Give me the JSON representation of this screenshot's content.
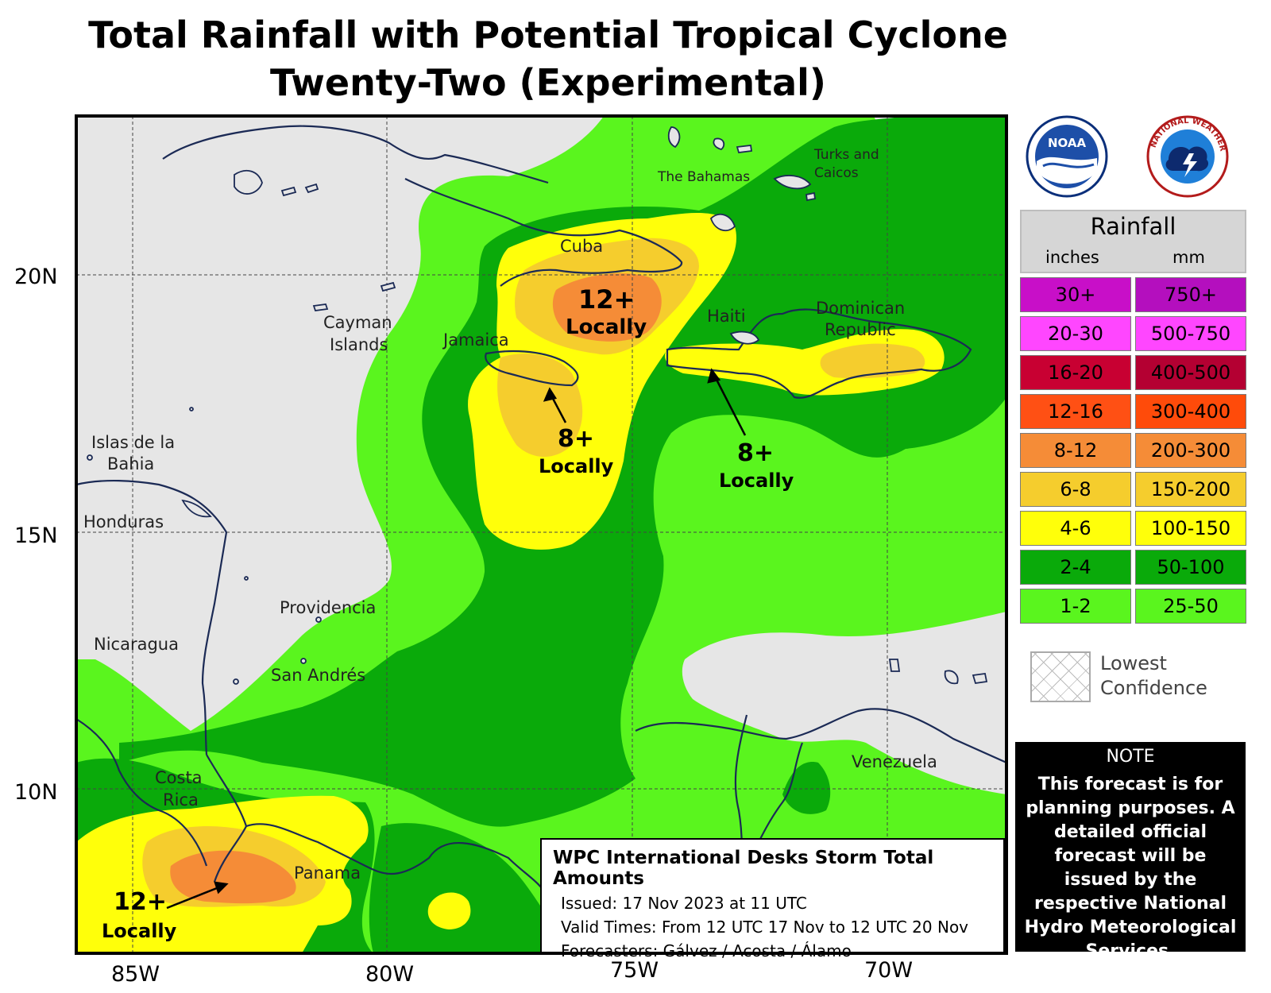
{
  "title": {
    "line1": "Total Rainfall with Potential Tropical Cyclone",
    "line2": "Twenty-Two (Experimental)"
  },
  "axes": {
    "latitudes": [
      "20N",
      "15N",
      "10N"
    ],
    "longitudes": [
      "85W",
      "80W",
      "75W",
      "70W"
    ]
  },
  "places": {
    "the_bahamas": "The Bahamas",
    "turks_line1": "Turks and",
    "turks_line2": "Caicos",
    "cuba": "Cuba",
    "haiti": "Haiti",
    "dominican_line1": "Dominican",
    "dominican_line2": "Republic",
    "cayman_line1": "Cayman",
    "cayman_line2": "Islands",
    "jamaica": "Jamaica",
    "islas_line1": "Islas de la",
    "islas_line2": "Bahia",
    "honduras": "Honduras",
    "providencia": "Providencia",
    "nicaragua": "Nicaragua",
    "san_andres": "San Andrés",
    "costa_line1": "Costa",
    "costa_line2": "Rica",
    "panama": "Panama",
    "venezuela": "Venezuela"
  },
  "callouts": {
    "cuba_amount": "12+",
    "cuba_word": "Locally",
    "jamaica_amount": "8+",
    "jamaica_word": "Locally",
    "haiti_amount": "8+",
    "haiti_word": "Locally",
    "costarica_amount": "12+",
    "costarica_word": "Locally"
  },
  "legend": {
    "title": "Rainfall",
    "inches_header": "inches",
    "mm_header": "mm",
    "rows": [
      {
        "inches": "30+",
        "mm": "750+",
        "color": "#c80fc8",
        "mm_color": "#b40fbe"
      },
      {
        "inches": "20-30",
        "mm": "500-750",
        "color": "#ff46ff",
        "mm_color": "#ff46ff"
      },
      {
        "inches": "16-20",
        "mm": "400-500",
        "color": "#c80032",
        "mm_color": "#b40032"
      },
      {
        "inches": "12-16",
        "mm": "300-400",
        "color": "#ff5014",
        "mm_color": "#ff4b0a"
      },
      {
        "inches": "8-12",
        "mm": "200-300",
        "color": "#f58c37",
        "mm_color": "#f58c37"
      },
      {
        "inches": "6-8",
        "mm": "150-200",
        "color": "#f5cd2d",
        "mm_color": "#f5cd2d"
      },
      {
        "inches": "4-6",
        "mm": "100-150",
        "color": "#ffff0a",
        "mm_color": "#ffff0a"
      },
      {
        "inches": "2-4",
        "mm": "50-100",
        "color": "#0aaa0a",
        "mm_color": "#0aaa0a"
      },
      {
        "inches": "1-2",
        "mm": "25-50",
        "color": "#5af51e",
        "mm_color": "#5af51e"
      }
    ]
  },
  "low_confidence": {
    "line1": "Lowest",
    "line2": "Confidence"
  },
  "note": {
    "title": "NOTE",
    "body": "This forecast is for planning purposes. A detailed official forecast will be issued by the respective National Hydro Meteorological Services."
  },
  "info": {
    "heading": "WPC International Desks Storm Total Amounts",
    "issued": "Issued:  17 Nov 2023 at 11 UTC",
    "valid": "Valid Times:  From 12 UTC 17 Nov to 12 UTC 20 Nov",
    "forecasters": "Forecasters: Gálvez / Acosta / Álamo"
  },
  "logos": {
    "noaa_text": "NOAA",
    "nws_arc": "NATIONAL WEATHER SERVICE"
  },
  "colors": {
    "land": "#e6e6e6",
    "c1_2": "#5af51e",
    "c2_4": "#0aaa0a",
    "c4_6": "#ffff0a",
    "c6_8": "#f5cd2d",
    "c8_12": "#f58c37",
    "border": "#1b2a55"
  }
}
